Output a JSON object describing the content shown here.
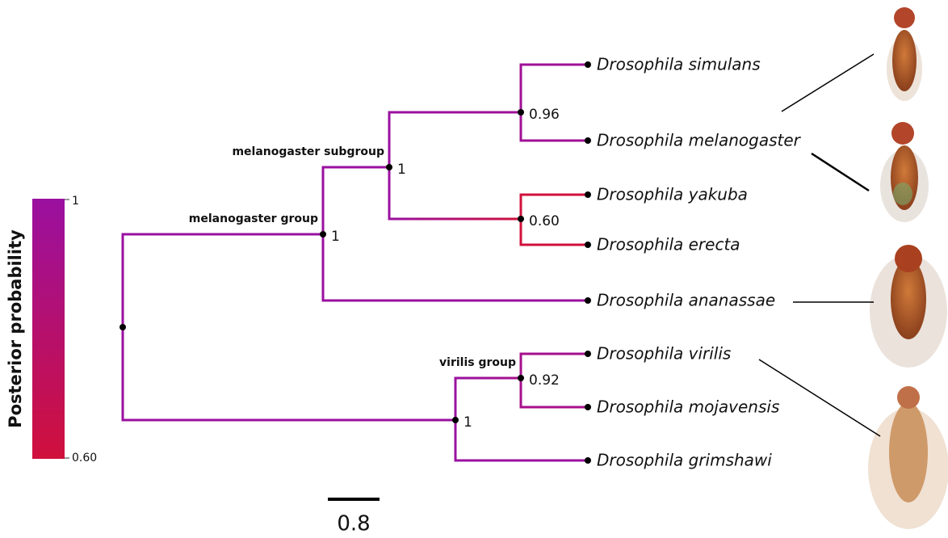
{
  "colorbar": {
    "title": "Posterior probability",
    "max": 1,
    "min": {
      "value": 0.6,
      "label": "0.60"
    }
  },
  "taxa": [
    "Drosophila simulans",
    "Drosophila melanogaster",
    "Drosophila yakuba",
    "Drosophila erecta",
    "Drosophila ananassae",
    "Drosophila virilis",
    "Drosophila mojavensis",
    "Drosophila grimshawi"
  ],
  "nodes": [
    {
      "support": 0.96
    },
    {
      "support": {
        "value": 0.6,
        "label": "0.60"
      }
    },
    {
      "support": 1,
      "group": "melanogaster subgroup"
    },
    {
      "support": 1,
      "group": "melanogaster group"
    },
    {
      "support": 0.92,
      "group": "virilis group"
    },
    {
      "support": 1
    }
  ],
  "scale_bar": 0.8
}
